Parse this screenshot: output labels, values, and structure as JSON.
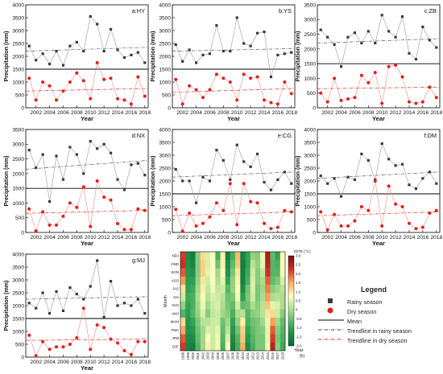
{
  "chart_data": [
    {
      "type": "line",
      "title": "a:HY",
      "xlabel": "Year",
      "ylabel": "Precipitation (mm)",
      "ylim": [
        0,
        4000
      ],
      "yticks": [
        0,
        500,
        1000,
        1500,
        2000,
        2500,
        3000,
        3500,
        4000
      ],
      "xticks": [
        "2002",
        "2004",
        "2006",
        "2008",
        "2010",
        "2012",
        "2014",
        "2016",
        "2018"
      ],
      "mean": 1500,
      "rainy_trend_levels": [
        2200,
        2350
      ],
      "dry_trend_levels": [
        650,
        750
      ],
      "x": [
        2001,
        2002,
        2003,
        2004,
        2005,
        2006,
        2007,
        2008,
        2009,
        2010,
        2011,
        2012,
        2013,
        2014,
        2015,
        2016,
        2017,
        2018
      ],
      "series": [
        {
          "name": "Rainy season",
          "values": [
            2400,
            1850,
            2100,
            1700,
            2200,
            1650,
            2400,
            2550,
            2200,
            3550,
            3250,
            2200,
            3050,
            2250,
            1950,
            2050,
            2150,
            1750
          ]
        },
        {
          "name": "Dry season",
          "values": [
            1150,
            300,
            1000,
            850,
            300,
            650,
            1000,
            1350,
            1050,
            350,
            1750,
            1100,
            1150,
            350,
            300,
            150,
            1200,
            450
          ]
        }
      ]
    },
    {
      "type": "line",
      "title": "b:YS",
      "xlabel": "Year",
      "ylabel": "Precipitation (mm)",
      "ylim": [
        0,
        4000
      ],
      "yticks": [
        0,
        500,
        1000,
        1500,
        2000,
        2500,
        3000,
        3500,
        4000
      ],
      "xticks": [
        "2002",
        "2004",
        "2006",
        "2008",
        "2010",
        "2012",
        "2014",
        "2016",
        "2018"
      ],
      "mean": 1500,
      "rainy_trend_levels": [
        2200,
        2300
      ],
      "dry_trend_levels": [
        600,
        750
      ],
      "x": [
        2001,
        2002,
        2003,
        2004,
        2005,
        2006,
        2007,
        2008,
        2009,
        2010,
        2011,
        2012,
        2013,
        2014,
        2015,
        2016,
        2017,
        2018
      ],
      "series": [
        {
          "name": "Rainy season",
          "values": [
            2450,
            1800,
            2250,
            1750,
            2050,
            2100,
            3200,
            2200,
            2200,
            3500,
            2500,
            2400,
            2900,
            2950,
            1200,
            2050,
            2100,
            2150
          ]
        },
        {
          "name": "Dry season",
          "values": [
            1100,
            150,
            850,
            700,
            400,
            700,
            1300,
            1150,
            1000,
            300,
            1300,
            1150,
            1200,
            300,
            200,
            150,
            1000,
            550
          ]
        }
      ]
    },
    {
      "type": "line",
      "title": "c:ZB",
      "xlabel": "Year",
      "ylabel": "Precipitation (mm)",
      "ylim": [
        0,
        3500
      ],
      "yticks": [
        0,
        500,
        1000,
        1500,
        2000,
        2500,
        3000,
        3500
      ],
      "xticks": [
        "2002",
        "2004",
        "2006",
        "2008",
        "2010",
        "2012",
        "2014",
        "2016",
        "2018"
      ],
      "mean": 1500,
      "rainy_trend_levels": [
        2200,
        2350
      ],
      "dry_trend_levels": [
        650,
        700
      ],
      "x": [
        2001,
        2002,
        2003,
        2004,
        2005,
        2006,
        2007,
        2008,
        2009,
        2010,
        2011,
        2012,
        2013,
        2014,
        2015,
        2016,
        2017,
        2018
      ],
      "series": [
        {
          "name": "Rainy season",
          "values": [
            2650,
            2400,
            2150,
            1400,
            2400,
            2550,
            2200,
            2600,
            2200,
            3150,
            2600,
            2400,
            3100,
            1850,
            1650,
            2750,
            2300,
            2050
          ]
        },
        {
          "name": "Dry season",
          "values": [
            500,
            200,
            1000,
            250,
            300,
            350,
            1100,
            850,
            1200,
            150,
            1400,
            1450,
            1050,
            200,
            150,
            200,
            700,
            350
          ]
        }
      ]
    },
    {
      "type": "line",
      "title": "d:NX",
      "xlabel": "Year",
      "ylabel": "Precipitation (mm)",
      "ylim": [
        0,
        3500
      ],
      "yticks": [
        0,
        500,
        1000,
        1500,
        2000,
        2500,
        3000,
        3500
      ],
      "xticks": [
        "2002",
        "2004",
        "2006",
        "2008",
        "2010",
        "2012",
        "2014",
        "2016",
        "2018"
      ],
      "mean": 1500,
      "rainy_trend_levels": [
        2150,
        2450
      ],
      "dry_trend_levels": [
        650,
        750
      ],
      "x": [
        2001,
        2002,
        2003,
        2004,
        2005,
        2006,
        2007,
        2008,
        2009,
        2010,
        2011,
        2012,
        2013,
        2014,
        2015,
        2016,
        2017,
        2018
      ],
      "series": [
        {
          "name": "Rainy season",
          "values": [
            2800,
            2200,
            2650,
            1050,
            2600,
            1800,
            2900,
            2650,
            2000,
            3100,
            2850,
            3000,
            2700,
            1800,
            1450,
            2300,
            2350,
            1950
          ]
        },
        {
          "name": "Dry season",
          "values": [
            800,
            50,
            700,
            250,
            250,
            550,
            1000,
            850,
            1550,
            200,
            1750,
            1200,
            1100,
            300,
            100,
            100,
            800,
            750
          ]
        }
      ]
    },
    {
      "type": "line",
      "title": "e:CG",
      "xlabel": "Year",
      "ylabel": "Precipitation (mm)",
      "ylim": [
        0,
        4000
      ],
      "yticks": [
        0,
        500,
        1000,
        1500,
        2000,
        2500,
        3000,
        3500,
        4000
      ],
      "xticks": [
        "2002",
        "2004",
        "2006",
        "2008",
        "2010",
        "2012",
        "2014",
        "2016",
        "2018"
      ],
      "mean": 1500,
      "rainy_trend_levels": [
        2150,
        2350
      ],
      "dry_trend_levels": [
        650,
        800
      ],
      "x": [
        2001,
        2002,
        2003,
        2004,
        2005,
        2006,
        2007,
        2008,
        2009,
        2010,
        2011,
        2012,
        2013,
        2014,
        2015,
        2016,
        2017,
        2018
      ],
      "series": [
        {
          "name": "Rainy season",
          "values": [
            2450,
            2000,
            2000,
            1150,
            2150,
            2000,
            3200,
            2800,
            2050,
            3400,
            2750,
            2550,
            3050,
            1950,
            1650,
            2050,
            2350,
            1900
          ]
        },
        {
          "name": "Dry season",
          "values": [
            900,
            50,
            750,
            250,
            350,
            600,
            1150,
            850,
            1900,
            300,
            1900,
            1200,
            1150,
            350,
            150,
            200,
            850,
            800
          ]
        }
      ]
    },
    {
      "type": "line",
      "title": "f:DM",
      "xlabel": "Year",
      "ylabel": "Precipitation (mm)",
      "ylim": [
        0,
        4000
      ],
      "yticks": [
        0,
        500,
        1000,
        1500,
        2000,
        2500,
        3000,
        3500,
        4000
      ],
      "xticks": [
        "2002",
        "2004",
        "2006",
        "2008",
        "2010",
        "2012",
        "2014",
        "2016",
        "2018"
      ],
      "mean": 1500,
      "rainy_trend_levels": [
        2100,
        2350
      ],
      "dry_trend_levels": [
        650,
        800
      ],
      "x": [
        2001,
        2002,
        2003,
        2004,
        2005,
        2006,
        2007,
        2008,
        2009,
        2010,
        2011,
        2012,
        2013,
        2014,
        2015,
        2016,
        2017,
        2018
      ],
      "series": [
        {
          "name": "Rainy season",
          "values": [
            2200,
            1900,
            2100,
            1400,
            2150,
            2050,
            3050,
            2800,
            2050,
            3450,
            2850,
            2600,
            2650,
            1850,
            1700,
            2100,
            2350,
            1900
          ]
        },
        {
          "name": "Dry season",
          "values": [
            800,
            100,
            700,
            250,
            250,
            450,
            1000,
            850,
            2000,
            250,
            1800,
            1100,
            1000,
            350,
            150,
            200,
            750,
            850
          ]
        }
      ]
    },
    {
      "type": "line",
      "title": "g:MJ",
      "xlabel": "Year",
      "ylabel": "Precipitation (mm)",
      "ylim": [
        0,
        4000
      ],
      "yticks": [
        0,
        500,
        1000,
        1500,
        2000,
        2500,
        3000,
        3500,
        4000
      ],
      "xticks": [
        "2002",
        "2004",
        "2006",
        "2008",
        "2010",
        "2012",
        "2014",
        "2016",
        "2018"
      ],
      "mean": 1500,
      "rainy_trend_levels": [
        2250,
        2350
      ],
      "dry_trend_levels": [
        650,
        700
      ],
      "x": [
        2001,
        2002,
        2003,
        2004,
        2005,
        2006,
        2007,
        2008,
        2009,
        2010,
        2011,
        2012,
        2013,
        2014,
        2015,
        2016,
        2017,
        2018
      ],
      "series": [
        {
          "name": "Rainy season",
          "values": [
            2100,
            1900,
            2500,
            1700,
            2550,
            1800,
            2700,
            2450,
            2250,
            2750,
            3750,
            1550,
            2950,
            2000,
            2100,
            2000,
            2250,
            1700
          ]
        },
        {
          "name": "Dry season",
          "values": [
            850,
            50,
            600,
            300,
            400,
            400,
            500,
            750,
            1900,
            300,
            1250,
            1150,
            700,
            550,
            250,
            100,
            600,
            600
          ]
        }
      ]
    },
    {
      "type": "heatmap",
      "title": "",
      "xlabel": "Year",
      "ylabel": "Month",
      "colorbar_label": "SSTs (°C)",
      "colorbar_ticks": [
        "3.0",
        "2.5",
        "2.0",
        "1.5",
        "1.0",
        "0.5",
        "0",
        "-0.5",
        "-1.0",
        "-1.5",
        "-2.0"
      ],
      "colorbar_range": [
        -2.0,
        3.0
      ],
      "panel_label": "(h)",
      "rows": [
        "NDJ",
        "OND",
        "SON",
        "ASO",
        "JAS",
        "JJA",
        "MJJ",
        "AMJ",
        "MAM",
        "FMA",
        "JFM",
        "DJF"
      ],
      "columns": [
        "1998",
        "1999",
        "2000",
        "2001",
        "2002",
        "2003",
        "2004",
        "2005",
        "2006",
        "2007",
        "2008",
        "2009",
        "2010",
        "2011",
        "2012",
        "2013",
        "2014",
        "2015",
        "2016",
        "2017",
        "2018"
      ],
      "values": [
        [
          2.2,
          -1.4,
          -1.6,
          -0.3,
          1.1,
          0.4,
          0.7,
          -0.8,
          0.9,
          -1.6,
          -0.8,
          1.4,
          -1.5,
          -1.0,
          -0.2,
          -0.3,
          0.6,
          2.6,
          -0.6,
          -1.0,
          0.8
        ],
        [
          2.3,
          -1.3,
          -1.5,
          -0.3,
          1.2,
          0.4,
          0.7,
          -0.5,
          0.9,
          -1.4,
          -0.6,
          1.3,
          -1.6,
          -1.0,
          0.1,
          -0.2,
          0.5,
          2.5,
          -0.7,
          -0.8,
          0.8
        ],
        [
          2.0,
          -1.2,
          -1.3,
          -0.3,
          1.2,
          0.5,
          0.7,
          -0.1,
          0.8,
          -1.3,
          -0.4,
          1.0,
          -1.6,
          -0.9,
          0.3,
          -0.3,
          0.2,
          2.3,
          -0.7,
          -0.7,
          0.7
        ],
        [
          1.6,
          -1.1,
          -1.1,
          -0.2,
          1.0,
          0.3,
          0.7,
          0.0,
          0.5,
          -1.0,
          -0.2,
          0.9,
          -1.6,
          -0.8,
          0.4,
          -0.3,
          0.0,
          2.0,
          -0.6,
          -0.4,
          0.4
        ],
        [
          1.0,
          -1.0,
          -0.9,
          -0.1,
          0.9,
          0.2,
          0.6,
          0.2,
          0.3,
          -0.7,
          -0.2,
          0.8,
          -1.4,
          -0.5,
          0.4,
          -0.4,
          -0.1,
          1.8,
          -0.3,
          -0.1,
          0.1
        ],
        [
          0.3,
          -0.9,
          -0.8,
          0.0,
          0.8,
          0.1,
          0.4,
          0.3,
          0.1,
          -0.5,
          -0.4,
          0.6,
          -1.1,
          -0.4,
          0.3,
          -0.4,
          0.0,
          1.6,
          0.0,
          0.1,
          0.0
        ],
        [
          -0.2,
          -1.0,
          -0.8,
          -0.1,
          0.6,
          -0.1,
          0.3,
          0.4,
          0.0,
          -0.4,
          -0.6,
          0.3,
          -0.6,
          -0.5,
          0.0,
          -0.3,
          0.1,
          1.3,
          0.5,
          0.4,
          0.0
        ],
        [
          -0.7,
          -1.1,
          -0.7,
          -0.2,
          0.4,
          -0.3,
          0.2,
          0.3,
          -0.1,
          -0.3,
          -0.8,
          0.0,
          0.1,
          -0.7,
          -0.3,
          -0.2,
          0.1,
          1.0,
          1.1,
          0.3,
          -0.3
        ],
        [
          1.1,
          -1.2,
          -1.0,
          -0.4,
          0.1,
          0.1,
          0.3,
          0.3,
          -0.5,
          -0.1,
          -1.0,
          -0.2,
          0.9,
          -0.8,
          -0.5,
          -0.4,
          -0.1,
          0.6,
          1.6,
          -0.1,
          -0.6
        ],
        [
          1.5,
          -1.3,
          -1.2,
          -0.5,
          -0.1,
          0.4,
          0.3,
          0.5,
          -0.6,
          0.1,
          -1.2,
          -0.5,
          1.2,
          -1.0,
          -0.6,
          -0.4,
          -0.3,
          0.5,
          2.0,
          -0.3,
          -0.7
        ],
        [
          2.0,
          -1.4,
          -1.4,
          -0.6,
          -0.1,
          0.7,
          0.3,
          0.6,
          -0.7,
          0.4,
          -1.4,
          -0.7,
          1.3,
          -1.2,
          -0.7,
          -0.4,
          -0.4,
          0.5,
          2.2,
          -0.4,
          -0.8
        ],
        [
          2.2,
          -1.5,
          -1.6,
          -0.7,
          -0.1,
          0.9,
          0.3,
          0.6,
          -0.8,
          0.7,
          -1.6,
          -0.8,
          1.5,
          -1.4,
          -0.8,
          -0.4,
          -0.4,
          0.6,
          2.5,
          -0.3,
          -0.9
        ]
      ]
    }
  ],
  "legend": {
    "title": "Legend",
    "items": [
      "Rainy season",
      "Dry season",
      "Mean",
      "Trendline in rainy season",
      "Trendline in dry season"
    ]
  },
  "colors": {
    "rainy": "#3a3a3a",
    "dry": "#e0201b",
    "rainy_line": "#9a9a9a",
    "dry_line": "#f08a88",
    "mean": "#000000"
  }
}
